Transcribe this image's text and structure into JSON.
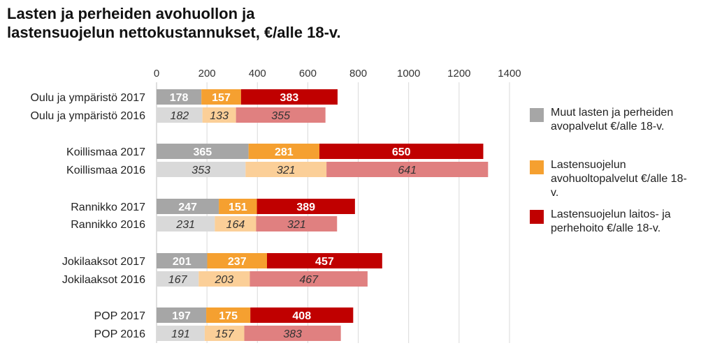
{
  "title_line1": "Lasten ja perheiden avohuollon ja",
  "title_line2": "lastensuojelun nettokustannukset, €/alle 18-v.",
  "chart_data": {
    "type": "bar",
    "orientation": "horizontal",
    "stacked": true,
    "xlim": [
      0,
      1400
    ],
    "xticks": [
      0,
      200,
      400,
      600,
      800,
      1000,
      1200,
      1400
    ],
    "grid": "vertical",
    "legend_position": "right",
    "categories": [
      "Oulu ja ympäristö 2017",
      "Oulu ja ympäristö 2016",
      "Koillismaa 2017",
      "Koillismaa 2016",
      "Rannikko 2017",
      "Rannikko 2016",
      "Jokilaaksot 2017",
      "Jokilaaksot 2016",
      "POP 2017",
      "POP 2016"
    ],
    "series": [
      {
        "name": "Muut lasten ja perheiden avopalvelut €/alle 18-v.",
        "values": [
          178,
          182,
          365,
          353,
          247,
          231,
          201,
          167,
          197,
          191
        ],
        "color_2017": "#a6a6a6",
        "color_2016": "#d9d9d9"
      },
      {
        "name": "Lastensuojelun avohuoltopalvelut €/alle 18-v.",
        "values": [
          157,
          133,
          281,
          321,
          151,
          164,
          237,
          203,
          175,
          157
        ],
        "color_2017": "#f5a030",
        "color_2016": "#fbcf98"
      },
      {
        "name": "Lastensuojelun laitos- ja perhehoito €/alle 18-v.",
        "values": [
          383,
          355,
          650,
          641,
          389,
          321,
          457,
          467,
          408,
          383
        ],
        "color_2017": "#c00000",
        "color_2016": "#e08080"
      }
    ]
  }
}
